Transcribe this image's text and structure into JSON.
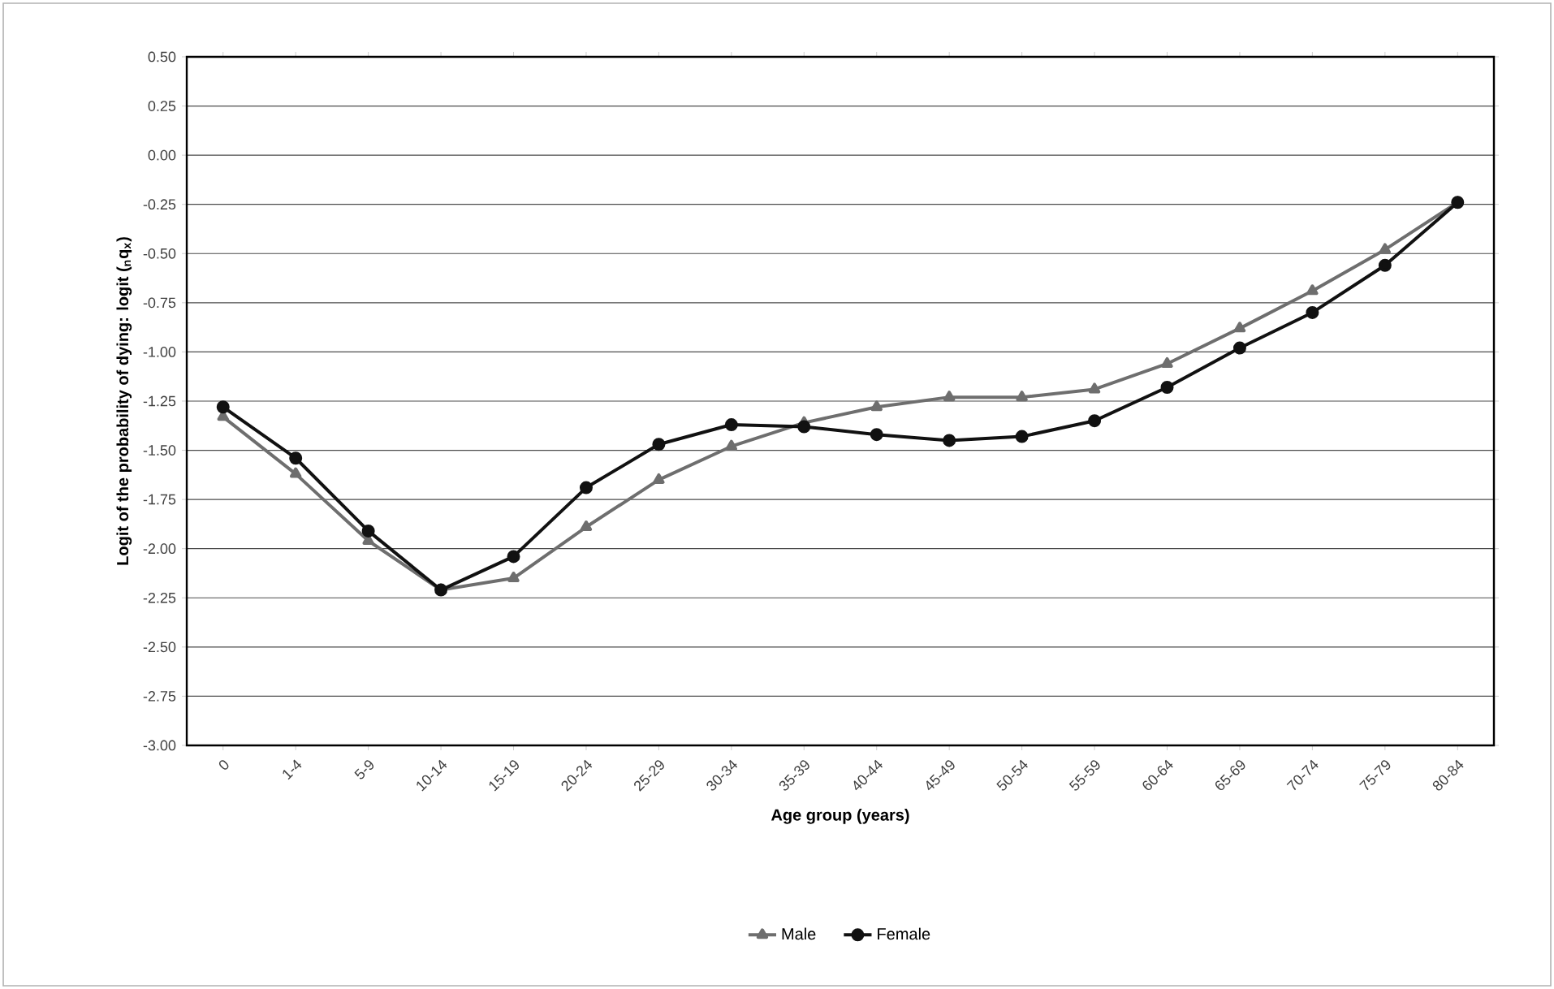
{
  "chart_data": {
    "type": "line",
    "xlabel": "Age group (years)",
    "ylabel": "Logit of the probability of dying: logit ($_{n}$q$_{x}$)",
    "categories": [
      "0",
      "1-4",
      "5-9",
      "10-14",
      "15-19",
      "20-24",
      "25-29",
      "30-34",
      "35-39",
      "40-44",
      "45-49",
      "50-54",
      "55-59",
      "60-64",
      "65-69",
      "70-74",
      "75-79",
      "80-84"
    ],
    "series": [
      {
        "name": "Male",
        "color": "#6e6e6e",
        "marker": "triangle",
        "values": [
          -1.33,
          -1.62,
          -1.96,
          -2.21,
          -2.15,
          -1.89,
          -1.65,
          -1.48,
          -1.36,
          -1.28,
          -1.23,
          -1.23,
          -1.19,
          -1.06,
          -0.88,
          -0.69,
          -0.48,
          -0.24
        ]
      },
      {
        "name": "Female",
        "color": "#111111",
        "marker": "circle",
        "values": [
          -1.28,
          -1.54,
          -1.91,
          -2.21,
          -2.04,
          -1.69,
          -1.47,
          -1.37,
          -1.38,
          -1.42,
          -1.45,
          -1.43,
          -1.35,
          -1.18,
          -0.98,
          -0.8,
          -0.56,
          -0.24
        ]
      }
    ],
    "ylim": [
      -3.0,
      0.5
    ],
    "yticks": [
      {
        "value": 0.5,
        "label": "0.50"
      },
      {
        "value": 0.25,
        "label": "0.25"
      },
      {
        "value": 0.0,
        "label": "0.00"
      },
      {
        "value": -0.25,
        "label": "-0.25"
      },
      {
        "value": -0.5,
        "label": "-0.50"
      },
      {
        "value": -0.75,
        "label": "-0.75"
      },
      {
        "value": -1.0,
        "label": "-1.00"
      },
      {
        "value": -1.25,
        "label": "-1.25"
      },
      {
        "value": -1.5,
        "label": "-1.50"
      },
      {
        "value": -1.75,
        "label": "-1.75"
      },
      {
        "value": -2.0,
        "label": "-2.00"
      },
      {
        "value": -2.25,
        "label": "-2.25"
      },
      {
        "value": -2.5,
        "label": "-2.50"
      },
      {
        "value": -2.75,
        "label": "-2.75"
      },
      {
        "value": -3.0,
        "label": "-3.00"
      }
    ],
    "grid": "y",
    "legend": "bottom",
    "line_style": "solid"
  }
}
